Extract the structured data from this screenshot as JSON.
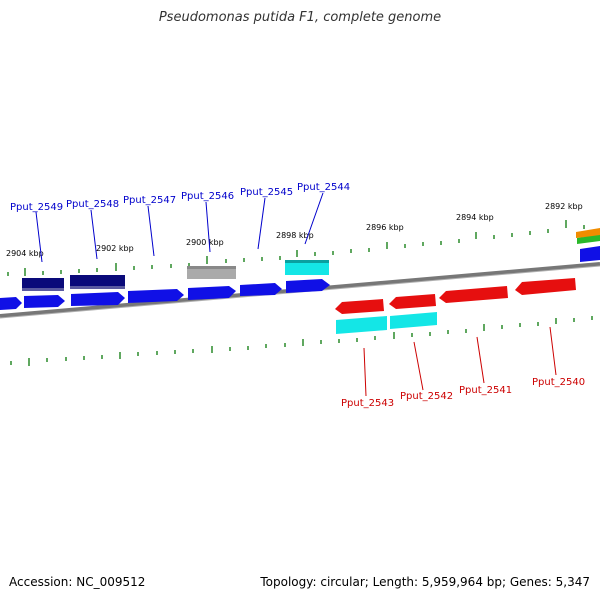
{
  "title": "Pseudomonas putida F1, complete genome",
  "footer": {
    "accession": "Accession: NC_009512",
    "summary": "Topology: circular; Length: 5,959,964 bp; Genes: 5,347"
  },
  "colors": {
    "forward_gene": "#1010e6",
    "forward_gene_dark": "#0a0a7a",
    "reverse_gene": "#e60f0f",
    "cyan_feature": "#14e6e6",
    "gray_feature": "#aaaaaa",
    "backbone": "#777777",
    "tick": "#2a8a2a",
    "forward_label": "#0000cc",
    "reverse_label": "#cc0000"
  },
  "scale_labels": [
    "2904 kbp",
    "2902 kbp",
    "2900 kbp",
    "2898 kbp",
    "2896 kbp",
    "2894 kbp",
    "2892 kbp"
  ],
  "forward_labels": [
    "Pput_2549",
    "Pput_2548",
    "Pput_2547",
    "Pput_2546",
    "Pput_2545",
    "Pput_2544"
  ],
  "reverse_labels": [
    "Pput_2543",
    "Pput_2542",
    "Pput_2541",
    "Pput_2540"
  ]
}
